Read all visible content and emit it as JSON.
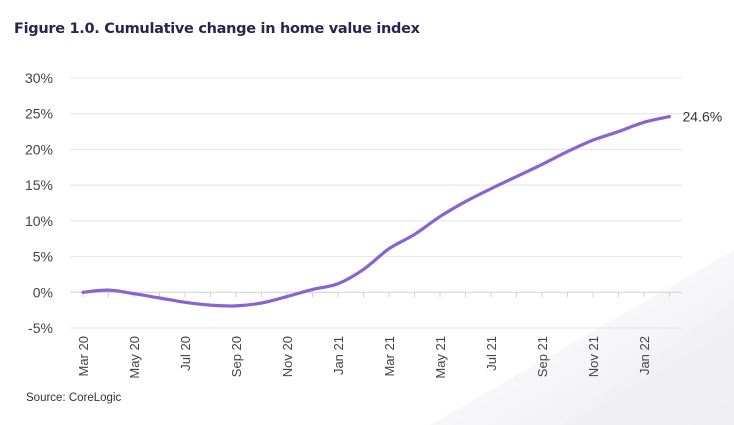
{
  "title": "Figure 1.0. Cumulative change in home value index",
  "source": "Source: CoreLogic",
  "colors": {
    "line": "#8a63d2",
    "grid": "#e4e4ea",
    "axis": "#cfcfd6",
    "text": "#444444"
  },
  "chart_data": {
    "type": "line",
    "title": "Figure 1.0. Cumulative change in home value index",
    "xlabel": "",
    "ylabel": "",
    "ylim": [
      -5,
      30
    ],
    "yticks": [
      -5,
      0,
      5,
      10,
      15,
      20,
      25,
      30
    ],
    "ytick_labels": [
      "-5%",
      "0%",
      "5%",
      "10%",
      "15%",
      "20%",
      "25%",
      "30%"
    ],
    "x": [
      "Mar 20",
      "Apr 20",
      "May 20",
      "Jun 20",
      "Jul 20",
      "Aug 20",
      "Sep 20",
      "Oct 20",
      "Nov 20",
      "Dec 20",
      "Jan 21",
      "Feb 21",
      "Mar 21",
      "Apr 21",
      "May 21",
      "Jun 21",
      "Jul 21",
      "Aug 21",
      "Sep 21",
      "Oct 21",
      "Nov 21",
      "Dec 21",
      "Jan 22",
      "Feb 22"
    ],
    "xtick_labels": [
      "Mar 20",
      "May 20",
      "Jul 20",
      "Sep 20",
      "Nov 20",
      "Jan 21",
      "Mar 21",
      "May 21",
      "Jul 21",
      "Sep 21",
      "Nov 21",
      "Jan 22"
    ],
    "series": [
      {
        "values": [
          0.0,
          0.3,
          -0.2,
          -0.8,
          -1.4,
          -1.8,
          -1.9,
          -1.5,
          -0.6,
          0.4,
          1.2,
          3.2,
          6.1,
          8.1,
          10.6,
          12.7,
          14.5,
          16.2,
          17.9,
          19.7,
          21.3,
          22.5,
          23.8,
          24.6
        ]
      }
    ],
    "annotation": "24.6%",
    "grid": true
  }
}
